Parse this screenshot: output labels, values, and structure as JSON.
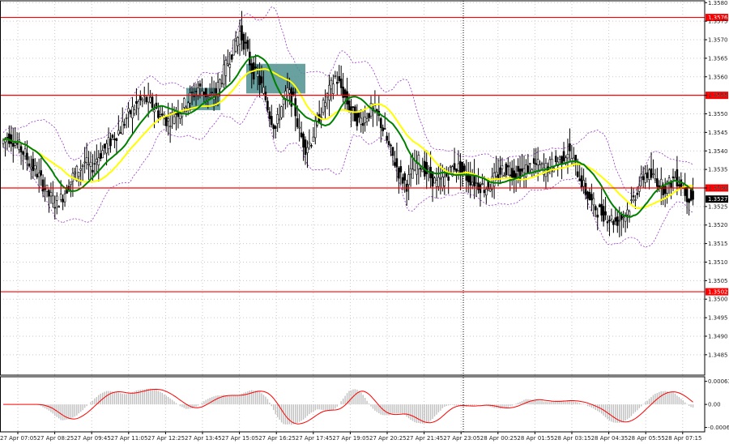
{
  "chart_data": [
    {
      "type": "candlestick",
      "title": "",
      "xlabel": "",
      "ylabel": "",
      "ylim": [
        1.34795,
        1.35805
      ],
      "y_ticks": [
        "1.3580",
        "1.3575",
        "1.3570",
        "1.3565",
        "1.3560",
        "1.3555",
        "1.3550",
        "1.3545",
        "1.3540",
        "1.3535",
        "1.3530",
        "1.3525",
        "1.3520",
        "1.3515",
        "1.3510",
        "1.3505",
        "1.3500",
        "1.3495",
        "1.3490",
        "1.3485"
      ],
      "x_ticks": [
        "27 Apr 07:05",
        "27 Apr 08:25",
        "27 Apr 09:45",
        "27 Apr 11:05",
        "27 Apr 12:25",
        "27 Apr 13:45",
        "27 Apr 15:05",
        "27 Apr 16:25",
        "27 Apr 17:45",
        "27 Apr 19:05",
        "27 Apr 20:25",
        "27 Apr 21:45",
        "27 Apr 23:05",
        "28 Apr 00:25",
        "28 Apr 01:55",
        "28 Apr 03:15",
        "28 Apr 04:35",
        "28 Apr 05:55",
        "28 Apr 07:15"
      ],
      "close_series": [
        1.3542,
        1.3544,
        1.3543,
        1.3541,
        1.3539,
        1.3536,
        1.3534,
        1.3531,
        1.3528,
        1.3526,
        1.3527,
        1.353,
        1.3533,
        1.3535,
        1.3537,
        1.3535,
        1.3538,
        1.354,
        1.3542,
        1.3544,
        1.3546,
        1.3549,
        1.3551,
        1.3553,
        1.3554,
        1.3553,
        1.3551,
        1.3549,
        1.3548,
        1.355,
        1.3551,
        1.3553,
        1.3555,
        1.3557,
        1.3556,
        1.3554,
        1.3556,
        1.356,
        1.3564,
        1.3568,
        1.3572,
        1.3568,
        1.3562,
        1.356,
        1.3556,
        1.355,
        1.3546,
        1.3552,
        1.3556,
        1.3553,
        1.3545,
        1.3541,
        1.3543,
        1.3548,
        1.3552,
        1.3556,
        1.356,
        1.3557,
        1.3553,
        1.355,
        1.3548,
        1.3549,
        1.3551,
        1.355,
        1.3546,
        1.3541,
        1.3537,
        1.3533,
        1.3531,
        1.3535,
        1.3537,
        1.3535,
        1.3533,
        1.3531,
        1.3532,
        1.3534,
        1.3536,
        1.3535,
        1.3533,
        1.3532,
        1.3531,
        1.353,
        1.3531,
        1.3533,
        1.3535,
        1.3535,
        1.3534,
        1.3534,
        1.3535,
        1.3536,
        1.3536,
        1.3535,
        1.3536,
        1.3537,
        1.3538,
        1.354,
        1.3537,
        1.3533,
        1.3529,
        1.3526,
        1.3524,
        1.3523,
        1.3522,
        1.3521,
        1.3522,
        1.3524,
        1.3527,
        1.3531,
        1.3534,
        1.3533,
        1.3532,
        1.353,
        1.3531,
        1.3533,
        1.3531,
        1.3528,
        1.3527
      ],
      "levels": [
        {
          "value": 1.3576,
          "label": "1.3576",
          "color": "#ff0000"
        },
        {
          "value": 1.3555,
          "label": "1.3555",
          "color": "#ff0000"
        },
        {
          "value": 1.353,
          "label": "1.3530",
          "color": "#ff0000"
        },
        {
          "value": 1.3502,
          "label": "1.3502",
          "color": "#ff0000"
        }
      ],
      "current_price": {
        "value": 1.3527,
        "label": "1.3527",
        "color": "#000000"
      },
      "moving_averages": [
        {
          "color": "#ffff00",
          "style": "line"
        },
        {
          "color": "#008000",
          "style": "line"
        }
      ],
      "bands_color": "#9932cc",
      "highlight_color": "#4f8f8f",
      "grid": true
    },
    {
      "type": "histogram",
      "title": "",
      "y_ticks": [
        "0.00063",
        "0.00",
        "-0.00063"
      ],
      "ylim": [
        -0.00075,
        0.0008
      ],
      "signal_color": "#ff0000",
      "bar_color": "#c0c0c0"
    }
  ]
}
